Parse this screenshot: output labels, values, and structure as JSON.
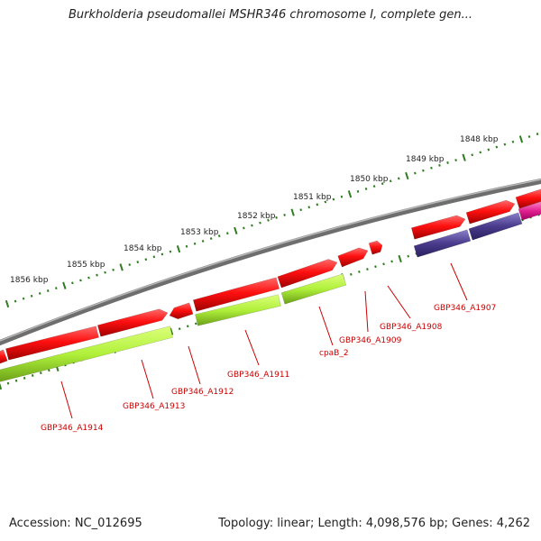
{
  "title": "Burkholderia pseudomallei MSHR346 chromosome I, complete gen...",
  "footer": {
    "accession": "Accession: NC_012695",
    "summary": "Topology: linear; Length: 4,098,576 bp; Genes: 4,262"
  },
  "ticks": [
    {
      "label": "1848 kbp"
    },
    {
      "label": "1849 kbp"
    },
    {
      "label": "1850 kbp"
    },
    {
      "label": "1851 kbp"
    },
    {
      "label": "1852 kbp"
    },
    {
      "label": "1853 kbp"
    },
    {
      "label": "1854 kbp"
    },
    {
      "label": "1855 kbp"
    },
    {
      "label": "1856 kbp"
    }
  ],
  "genes": [
    {
      "label": "GBP346_A1907"
    },
    {
      "label": "GBP346_A1908"
    },
    {
      "label": "GBP346_A1909"
    },
    {
      "label": "cpaB_2"
    },
    {
      "label": "GBP346_A1911"
    },
    {
      "label": "GBP346_A1912"
    },
    {
      "label": "GBP346_A1913"
    },
    {
      "label": "GBP346_A1914"
    }
  ],
  "colors": {
    "backbone": "#808080",
    "gene": "#e8101a",
    "cds": "#a5e030",
    "misc": "#4a3b8c",
    "other": "#e02090",
    "ticks": "#2e7d1e",
    "labels": "#cc0000"
  }
}
